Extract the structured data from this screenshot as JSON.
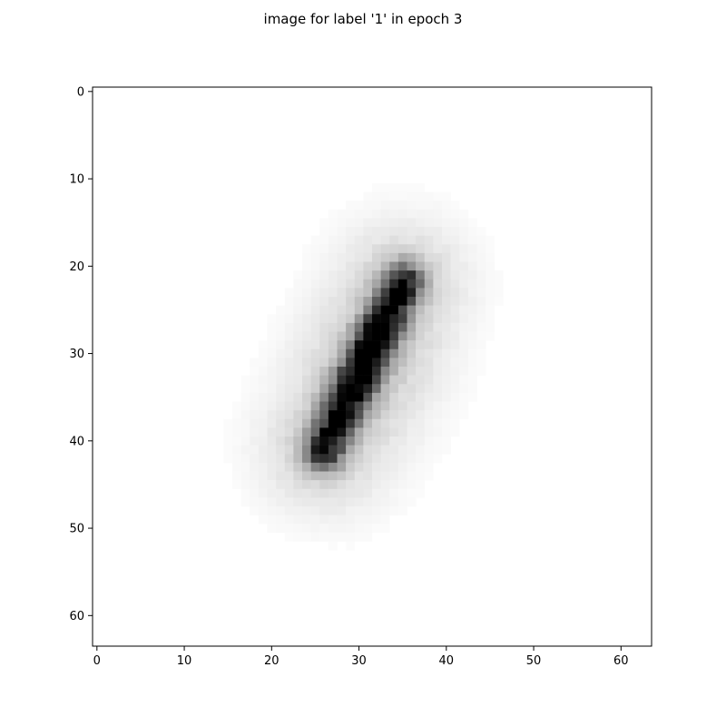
{
  "figure": {
    "title": "image for label '1' in epoch 3"
  },
  "image": {
    "description_label": "grayscale-digit-image",
    "grid_size": [
      64,
      64
    ],
    "colormap": "gray_r"
  },
  "axes": {
    "x_ticks": [
      "0",
      "10",
      "20",
      "30",
      "40",
      "50",
      "60"
    ],
    "y_ticks": [
      "0",
      "10",
      "20",
      "30",
      "40",
      "50",
      "60"
    ],
    "x_tick_values": [
      0,
      10,
      20,
      30,
      40,
      50,
      60
    ],
    "y_tick_values": [
      0,
      10,
      20,
      30,
      40,
      50,
      60
    ],
    "range": [
      -0.5,
      63.5
    ]
  }
}
